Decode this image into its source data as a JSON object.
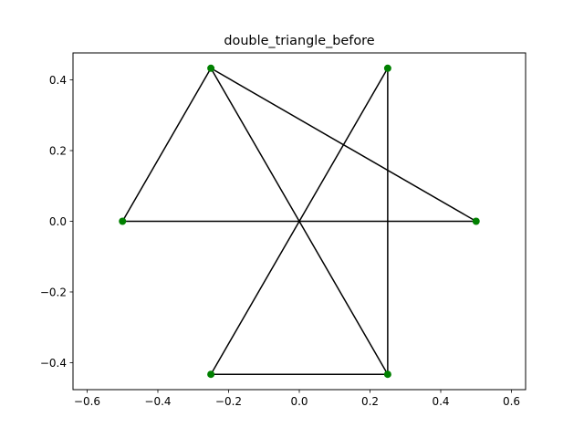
{
  "chart_data": {
    "type": "scatter",
    "title": "double_triangle_before",
    "xlabel": "",
    "ylabel": "",
    "xlim": [
      -0.64,
      0.64
    ],
    "ylim": [
      -0.4763,
      0.4763
    ],
    "xticks": [
      -0.6,
      -0.4,
      -0.2,
      0.0,
      0.2,
      0.4,
      0.6
    ],
    "xtick_labels": [
      "−0.6",
      "−0.4",
      "−0.2",
      "0.0",
      "0.2",
      "0.4",
      "0.6"
    ],
    "yticks": [
      -0.4,
      -0.2,
      0.0,
      0.2,
      0.4
    ],
    "ytick_labels": [
      "−0.4",
      "−0.2",
      "0.0",
      "0.2",
      "0.4"
    ],
    "grid": false,
    "points": [
      {
        "x": -0.5,
        "y": 0.0
      },
      {
        "x": -0.25,
        "y": 0.433
      },
      {
        "x": 0.25,
        "y": 0.433
      },
      {
        "x": 0.5,
        "y": 0.0
      },
      {
        "x": -0.25,
        "y": -0.433
      },
      {
        "x": 0.25,
        "y": -0.433
      }
    ],
    "edges": [
      [
        0,
        1
      ],
      [
        0,
        3
      ],
      [
        1,
        3
      ],
      [
        1,
        5
      ],
      [
        2,
        4
      ],
      [
        2,
        5
      ],
      [
        4,
        5
      ]
    ],
    "marker_color": "#008000",
    "line_color": "#000000"
  }
}
